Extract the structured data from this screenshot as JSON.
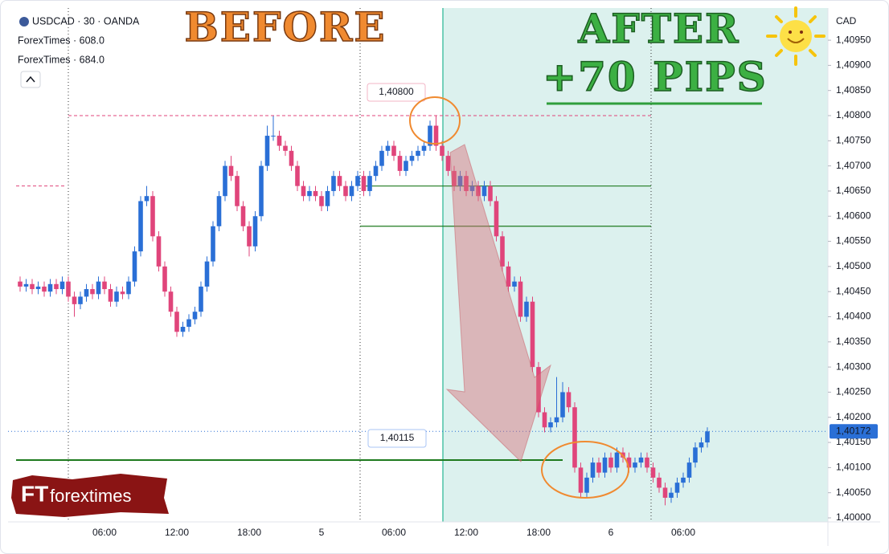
{
  "header": {
    "symbol": "USDCAD · 30 · OANDA",
    "indicators": [
      "ForexTimes · 608.0",
      "ForexTimes · 684.0"
    ],
    "currency": "CAD"
  },
  "captions": {
    "before": "BEFORE",
    "after": "AFTER",
    "pips": "+70 PIPS"
  },
  "logo": {
    "mark": "FT",
    "name": "forextimes"
  },
  "chart_data": {
    "type": "candlestick",
    "categories": [
      null,
      null,
      null,
      null,
      null,
      null,
      null,
      null,
      null,
      null,
      null,
      null,
      null,
      null,
      "06:00",
      null,
      null,
      null,
      null,
      null,
      null,
      null,
      null,
      null,
      null,
      null,
      "12:00",
      null,
      null,
      null,
      null,
      null,
      null,
      null,
      null,
      null,
      null,
      null,
      "18:00",
      null,
      null,
      null,
      null,
      null,
      null,
      null,
      null,
      null,
      null,
      null,
      "5",
      null,
      null,
      null,
      null,
      null,
      null,
      null,
      null,
      null,
      null,
      null,
      "06:00",
      null,
      null,
      null,
      null,
      null,
      null,
      null,
      null,
      null,
      null,
      null,
      "12:00",
      null,
      null,
      null,
      null,
      null,
      null,
      null,
      null,
      null,
      null,
      null,
      "18:00",
      null,
      null,
      null,
      null,
      null,
      null,
      null,
      null,
      null,
      null,
      null,
      "6",
      null,
      null,
      null,
      null,
      null,
      null,
      null,
      null,
      null,
      null,
      null,
      "06:00",
      null,
      null,
      null,
      null
    ],
    "open": [
      1.4047,
      1.4046,
      1.40465,
      1.40455,
      1.4046,
      1.4045,
      1.40465,
      1.40455,
      1.4047,
      1.4044,
      1.40425,
      1.4044,
      1.40455,
      1.40445,
      1.4047,
      1.40455,
      1.4043,
      1.4045,
      1.40445,
      1.4047,
      1.4053,
      1.4063,
      1.4064,
      1.4056,
      1.405,
      1.4045,
      1.4041,
      1.4037,
      1.4038,
      1.40395,
      1.4041,
      1.4046,
      1.4051,
      1.4058,
      1.4064,
      1.407,
      1.4068,
      1.4062,
      1.4058,
      1.4054,
      1.406,
      1.407,
      1.4076,
      1.4076,
      1.4074,
      1.4073,
      1.407,
      1.4066,
      1.4064,
      1.4065,
      1.4064,
      1.4062,
      1.4065,
      1.4068,
      1.4066,
      1.4064,
      1.4066,
      1.4068,
      1.4065,
      1.4068,
      1.407,
      1.4073,
      1.4074,
      1.4072,
      1.4069,
      1.4071,
      1.4072,
      1.4073,
      1.4074,
      1.4078,
      1.4074,
      1.4072,
      1.4069,
      1.4066,
      1.4068,
      1.4065,
      1.4066,
      1.4064,
      1.4066,
      1.4063,
      1.4056,
      1.405,
      1.4046,
      1.4047,
      1.404,
      1.4043,
      1.403,
      1.4021,
      1.4018,
      1.4019,
      1.402,
      1.4025,
      1.4022,
      1.401,
      1.4005,
      1.4008,
      1.4011,
      1.4009,
      1.4012,
      1.401,
      1.4013,
      1.4012,
      1.401,
      1.4011,
      1.4012,
      1.401,
      1.4008,
      1.4006,
      1.4004,
      1.4005,
      1.4007,
      1.4008,
      1.4011,
      1.4014,
      1.4015
    ],
    "high": [
      1.4048,
      1.40475,
      1.40475,
      1.4047,
      1.4047,
      1.40475,
      1.40475,
      1.4048,
      1.4048,
      1.4045,
      1.4045,
      1.40465,
      1.40465,
      1.4048,
      1.4048,
      1.40465,
      1.4046,
      1.4046,
      1.4048,
      1.4054,
      1.4064,
      1.4066,
      1.4065,
      1.4057,
      1.4051,
      1.4046,
      1.4042,
      1.4039,
      1.40405,
      1.4042,
      1.4047,
      1.4052,
      1.4059,
      1.4065,
      1.4071,
      1.4072,
      1.4069,
      1.4063,
      1.4059,
      1.4061,
      1.4071,
      1.4078,
      1.408,
      1.4077,
      1.4075,
      1.4074,
      1.4071,
      1.4067,
      1.4066,
      1.4066,
      1.4065,
      1.4066,
      1.4069,
      1.4069,
      1.4067,
      1.4067,
      1.4069,
      1.4069,
      1.4069,
      1.4071,
      1.4074,
      1.4075,
      1.4075,
      1.4073,
      1.4072,
      1.4073,
      1.4074,
      1.4075,
      1.4079,
      1.408,
      1.4075,
      1.4073,
      1.407,
      1.4069,
      1.4069,
      1.4067,
      1.4067,
      1.4067,
      1.4067,
      1.4064,
      1.4057,
      1.4051,
      1.4048,
      1.4048,
      1.4044,
      1.4044,
      1.4031,
      1.4022,
      1.402,
      1.4028,
      1.4027,
      1.4026,
      1.4023,
      1.4011,
      1.4009,
      1.4012,
      1.4012,
      1.4013,
      1.4013,
      1.4014,
      1.4014,
      1.4013,
      1.4012,
      1.4013,
      1.4013,
      1.4011,
      1.4009,
      1.4007,
      1.4006,
      1.4008,
      1.4009,
      1.4012,
      1.4015,
      1.4016,
      1.4018
    ],
    "low": [
      1.4045,
      1.4045,
      1.40445,
      1.40445,
      1.4044,
      1.4044,
      1.40445,
      1.40445,
      1.4043,
      1.404,
      1.40415,
      1.4043,
      1.40435,
      1.40435,
      1.40445,
      1.4042,
      1.4042,
      1.40435,
      1.40435,
      1.4046,
      1.4052,
      1.4062,
      1.4055,
      1.4049,
      1.4044,
      1.404,
      1.4036,
      1.4036,
      1.4037,
      1.40385,
      1.404,
      1.4045,
      1.405,
      1.4057,
      1.4063,
      1.4067,
      1.4061,
      1.4057,
      1.4052,
      1.4053,
      1.4059,
      1.4069,
      1.4075,
      1.4073,
      1.4072,
      1.4069,
      1.4065,
      1.4063,
      1.4063,
      1.4063,
      1.4061,
      1.4061,
      1.4064,
      1.4065,
      1.4063,
      1.4063,
      1.4065,
      1.4064,
      1.4064,
      1.4067,
      1.4069,
      1.4072,
      1.4071,
      1.4068,
      1.4068,
      1.407,
      1.4071,
      1.4072,
      1.4073,
      1.4073,
      1.4071,
      1.4068,
      1.4065,
      1.4065,
      1.4064,
      1.4064,
      1.4063,
      1.4063,
      1.4062,
      1.4055,
      1.4049,
      1.4045,
      1.4045,
      1.4039,
      1.4039,
      1.4029,
      1.402,
      1.4017,
      1.4017,
      1.4018,
      1.4019,
      1.4021,
      1.4009,
      1.4004,
      1.4004,
      1.4007,
      1.4008,
      1.4008,
      1.4009,
      1.4009,
      1.4011,
      1.4009,
      1.4009,
      1.401,
      1.4009,
      1.4007,
      1.4005,
      1.40025,
      1.4003,
      1.4004,
      1.4006,
      1.4007,
      1.401,
      1.4013,
      1.4014
    ],
    "close": [
      1.4046,
      1.40465,
      1.40455,
      1.4046,
      1.4045,
      1.40465,
      1.40455,
      1.4047,
      1.4044,
      1.40425,
      1.4044,
      1.40455,
      1.40445,
      1.4047,
      1.40455,
      1.4043,
      1.4045,
      1.40445,
      1.4047,
      1.4053,
      1.4063,
      1.4064,
      1.4056,
      1.405,
      1.4045,
      1.4041,
      1.4037,
      1.4038,
      1.40395,
      1.4041,
      1.4046,
      1.4051,
      1.4058,
      1.4064,
      1.407,
      1.4068,
      1.4062,
      1.4058,
      1.4054,
      1.406,
      1.407,
      1.4076,
      1.4076,
      1.4074,
      1.4073,
      1.407,
      1.4066,
      1.4064,
      1.4065,
      1.4064,
      1.4062,
      1.4065,
      1.4068,
      1.4066,
      1.4064,
      1.4066,
      1.4068,
      1.4065,
      1.4068,
      1.407,
      1.4073,
      1.4074,
      1.4072,
      1.4069,
      1.4071,
      1.4072,
      1.4073,
      1.4074,
      1.4078,
      1.4074,
      1.4072,
      1.4069,
      1.4066,
      1.4068,
      1.4065,
      1.4066,
      1.4064,
      1.4066,
      1.4063,
      1.4056,
      1.405,
      1.4046,
      1.4047,
      1.404,
      1.4043,
      1.403,
      1.4021,
      1.4018,
      1.4019,
      1.402,
      1.4025,
      1.4022,
      1.401,
      1.4005,
      1.4008,
      1.4011,
      1.4009,
      1.4012,
      1.401,
      1.4013,
      1.4012,
      1.401,
      1.4011,
      1.4012,
      1.401,
      1.4008,
      1.4006,
      1.4004,
      1.4005,
      1.4007,
      1.4008,
      1.4011,
      1.4014,
      1.4015,
      1.40172
    ],
    "up_color": "#2a6fd6",
    "down_color": "#e0457b",
    "ylim": [
      1.39992,
      1.41014
    ],
    "yticks": [
      {
        "value": 1.4,
        "label": "1,40000"
      },
      {
        "value": 1.4005,
        "label": "1,40050"
      },
      {
        "value": 1.401,
        "label": "1,40100"
      },
      {
        "value": 1.4015,
        "label": "1,40150"
      },
      {
        "value": 1.402,
        "label": "1,40200"
      },
      {
        "value": 1.4025,
        "label": "1,40250"
      },
      {
        "value": 1.403,
        "label": "1,40300"
      },
      {
        "value": 1.4035,
        "label": "1,40350"
      },
      {
        "value": 1.404,
        "label": "1,40400"
      },
      {
        "value": 1.4045,
        "label": "1,40450"
      },
      {
        "value": 1.405,
        "label": "1,40500"
      },
      {
        "value": 1.4055,
        "label": "1,40550"
      },
      {
        "value": 1.406,
        "label": "1,40600"
      },
      {
        "value": 1.4065,
        "label": "1,40650"
      },
      {
        "value": 1.407,
        "label": "1,40700"
      },
      {
        "value": 1.4075,
        "label": "1,40750"
      },
      {
        "value": 1.408,
        "label": "1,40800"
      },
      {
        "value": 1.4085,
        "label": "1,40850"
      },
      {
        "value": 1.409,
        "label": "1,40900"
      },
      {
        "value": 1.4095,
        "label": "1,40950"
      }
    ],
    "last_price": {
      "value": 1.40172,
      "label": "1,40172"
    },
    "price_labels": [
      {
        "value": 1.408,
        "label": "1,40800",
        "color": "#e0457b"
      },
      {
        "value": 1.40115,
        "label": "1,40115",
        "color": "#2a6fd6"
      }
    ],
    "green_levels": [
      1.4066,
      1.4058
    ],
    "grid": false
  }
}
